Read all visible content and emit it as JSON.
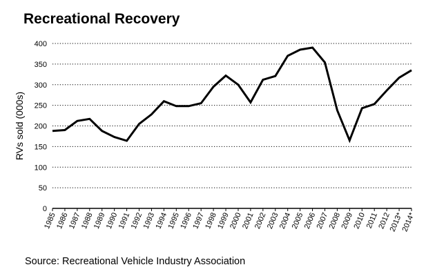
{
  "chart_data": {
    "type": "line",
    "title": "Recreational Recovery",
    "xlabel": "",
    "ylabel": "RVs sold (000s)",
    "ylim": [
      0,
      400
    ],
    "yticks": [
      0,
      50,
      100,
      150,
      200,
      250,
      300,
      350,
      400
    ],
    "grid": "horizontal-dotted",
    "categories": [
      "1985",
      "1986",
      "1987",
      "1988",
      "1989",
      "1990",
      "1991",
      "1992",
      "1993",
      "1994",
      "1995",
      "1996",
      "1997",
      "1998",
      "1999",
      "2000",
      "2001",
      "2002",
      "2003",
      "2004",
      "2005",
      "2006",
      "2007",
      "2008",
      "2009",
      "2010",
      "2011",
      "2012",
      "2013*",
      "2014*"
    ],
    "series": [
      {
        "name": "RVs sold",
        "values": [
          188,
          190,
          212,
          217,
          188,
          173,
          164,
          205,
          228,
          260,
          248,
          248,
          255,
          295,
          322,
          300,
          257,
          312,
          321,
          370,
          385,
          390,
          354,
          238,
          165,
          243,
          253,
          286,
          317,
          335
        ]
      }
    ],
    "colors": {
      "line": "#000000",
      "grid": "#000000"
    },
    "source": "Source: Recreational Vehicle Industry Association"
  }
}
